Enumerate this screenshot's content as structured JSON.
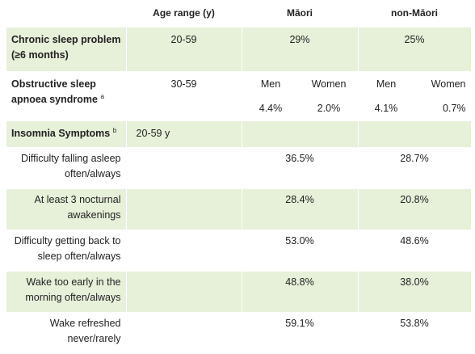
{
  "headers": {
    "age_range": "Age range (y)",
    "maori": "Māori",
    "non_maori": "non-Māori"
  },
  "rows": {
    "chronic": {
      "label": "Chronic sleep problem (≥6 months)",
      "age": "20-59",
      "maori": "29%",
      "non_maori": "25%"
    },
    "osa": {
      "label": "Obstructive sleep apnoea syndrome",
      "footnote": "a",
      "age": "30-59",
      "sex_men": "Men",
      "sex_women": "Women",
      "maori_men": "4.4%",
      "maori_women": "2.0%",
      "non_maori_men": "4.1%",
      "non_maori_women": "0.7%"
    },
    "insomnia": {
      "label": "Insomnia Symptoms",
      "footnote": "b",
      "age": "20-59 y"
    },
    "symptoms": [
      {
        "label": "Difficulty falling asleep often/always",
        "maori": "36.5%",
        "non_maori": "28.7%"
      },
      {
        "label": "At least 3 nocturnal awakenings",
        "maori": "28.4%",
        "non_maori": "20.8%"
      },
      {
        "label": "Difficulty getting back to sleep often/always",
        "maori": "53.0%",
        "non_maori": "48.6%"
      },
      {
        "label": "Wake too early in the morning often/always",
        "maori": "48.8%",
        "non_maori": "38.0%"
      },
      {
        "label": "Wake refreshed never/rarely",
        "maori": "59.1%",
        "non_maori": "53.8%"
      }
    ]
  }
}
